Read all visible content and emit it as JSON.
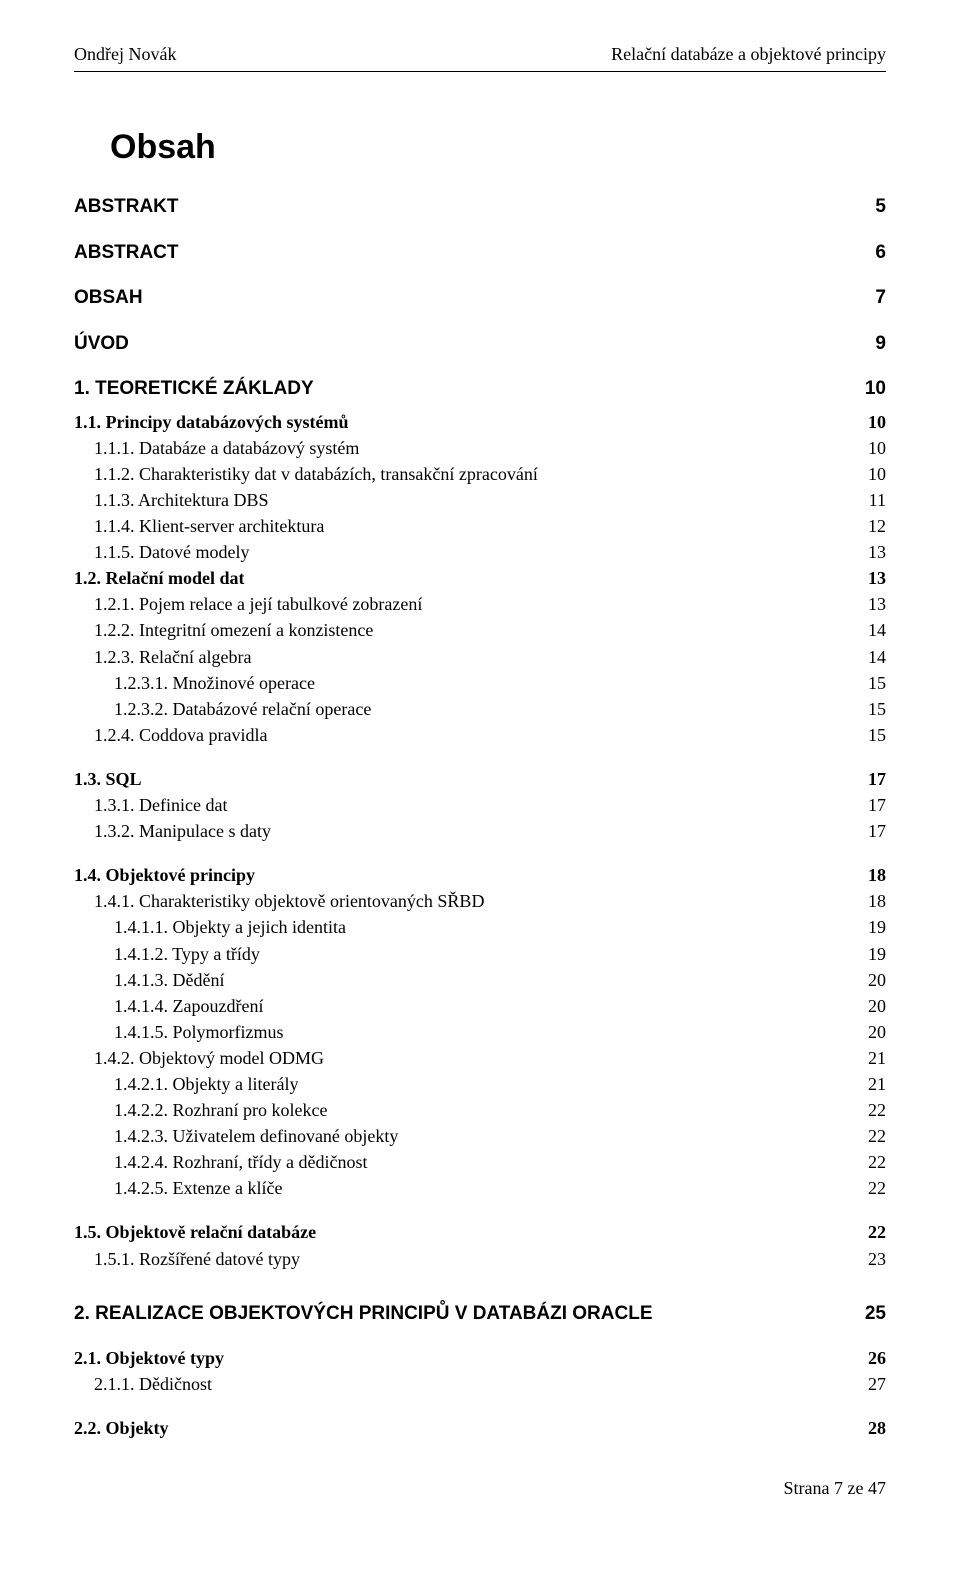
{
  "header": {
    "left": "Ondřej Novák",
    "right": "Relační databáze a objektové principy"
  },
  "title": "Obsah",
  "entries": [
    {
      "label": "ABSTRAKT",
      "page": "5",
      "indent": 0,
      "bold": true,
      "arial": true,
      "gapAfter": "m"
    },
    {
      "label": "ABSTRACT",
      "page": "6",
      "indent": 0,
      "bold": true,
      "arial": true,
      "gapAfter": "m"
    },
    {
      "label": "OBSAH",
      "page": "7",
      "indent": 0,
      "bold": true,
      "arial": true,
      "gapAfter": "m"
    },
    {
      "label": "ÚVOD",
      "page": "9",
      "indent": 0,
      "bold": true,
      "arial": true,
      "gapAfter": "m"
    },
    {
      "label": "1.     TEORETICKÉ ZÁKLADY",
      "page": "10",
      "indent": 0,
      "bold": true,
      "arial": true,
      "gapAfter": "s"
    },
    {
      "label": "1.1.    Principy databázových systémů",
      "page": "10",
      "indent": 0,
      "bold": true
    },
    {
      "label": "1.1.1.    Databáze a databázový systém",
      "page": "10",
      "indent": 1
    },
    {
      "label": "1.1.2.    Charakteristiky dat v databázích, transakční zpracování",
      "page": "10",
      "indent": 1
    },
    {
      "label": "1.1.3.    Architektura DBS",
      "page": "11",
      "indent": 1
    },
    {
      "label": "1.1.4.    Klient-server architektura",
      "page": "12",
      "indent": 1
    },
    {
      "label": "1.1.5.    Datové modely",
      "page": "13",
      "indent": 1
    },
    {
      "label": "1.2.    Relační model dat",
      "page": "13",
      "indent": 0,
      "bold": true
    },
    {
      "label": "1.2.1.    Pojem relace a její tabulkové zobrazení",
      "page": "13",
      "indent": 1
    },
    {
      "label": "1.2.2.    Integritní omezení a konzistence",
      "page": "14",
      "indent": 1
    },
    {
      "label": "1.2.3.    Relační algebra",
      "page": "14",
      "indent": 1
    },
    {
      "label": "1.2.3.1.    Množinové operace",
      "page": "15",
      "indent": 2
    },
    {
      "label": "1.2.3.2.    Databázové relační operace",
      "page": "15",
      "indent": 2
    },
    {
      "label": "1.2.4.    Coddova pravidla",
      "page": "15",
      "indent": 1,
      "gapAfter": "m"
    },
    {
      "label": "1.3.    SQL",
      "page": "17",
      "indent": 0,
      "bold": true
    },
    {
      "label": "1.3.1.    Definice dat",
      "page": "17",
      "indent": 1
    },
    {
      "label": "1.3.2.    Manipulace s daty",
      "page": "17",
      "indent": 1,
      "gapAfter": "m"
    },
    {
      "label": "1.4.    Objektové principy",
      "page": "18",
      "indent": 0,
      "bold": true
    },
    {
      "label": "1.4.1.    Charakteristiky objektově orientovaných SŘBD",
      "page": "18",
      "indent": 1
    },
    {
      "label": "1.4.1.1.    Objekty a jejich identita",
      "page": "19",
      "indent": 2
    },
    {
      "label": "1.4.1.2.    Typy a třídy",
      "page": "19",
      "indent": 2
    },
    {
      "label": "1.4.1.3.    Dědění",
      "page": "20",
      "indent": 2
    },
    {
      "label": "1.4.1.4.    Zapouzdření",
      "page": "20",
      "indent": 2
    },
    {
      "label": "1.4.1.5.    Polymorfizmus",
      "page": "20",
      "indent": 2
    },
    {
      "label": "1.4.2.    Objektový model ODMG",
      "page": "21",
      "indent": 1
    },
    {
      "label": "1.4.2.1.    Objekty a literály",
      "page": "21",
      "indent": 2
    },
    {
      "label": "1.4.2.2.    Rozhraní pro kolekce",
      "page": "22",
      "indent": 2
    },
    {
      "label": "1.4.2.3.    Uživatelem definované objekty",
      "page": "22",
      "indent": 2
    },
    {
      "label": "1.4.2.4.    Rozhraní, třídy a dědičnost",
      "page": "22",
      "indent": 2
    },
    {
      "label": "1.4.2.5.    Extenze a klíče",
      "page": "22",
      "indent": 2,
      "gapAfter": "m"
    },
    {
      "label": "1.5.    Objektově relační databáze",
      "page": "22",
      "indent": 0,
      "bold": true
    },
    {
      "label": "1.5.1.    Rozšířené datové typy",
      "page": "23",
      "indent": 1,
      "gapAfter": "l"
    },
    {
      "label": "2.     REALIZACE OBJEKTOVÝCH PRINCIPŮ V DATABÁZI ORACLE",
      "page": "25",
      "indent": 0,
      "bold": true,
      "arial": true,
      "gapAfter": "m"
    },
    {
      "label": "2.1.    Objektové typy",
      "page": "26",
      "indent": 0,
      "bold": true
    },
    {
      "label": "2.1.1.    Dědičnost",
      "page": "27",
      "indent": 1,
      "gapAfter": "m"
    },
    {
      "label": "2.2.    Objekty",
      "page": "28",
      "indent": 0,
      "bold": true
    }
  ],
  "footer": "Strana 7 ze 47"
}
